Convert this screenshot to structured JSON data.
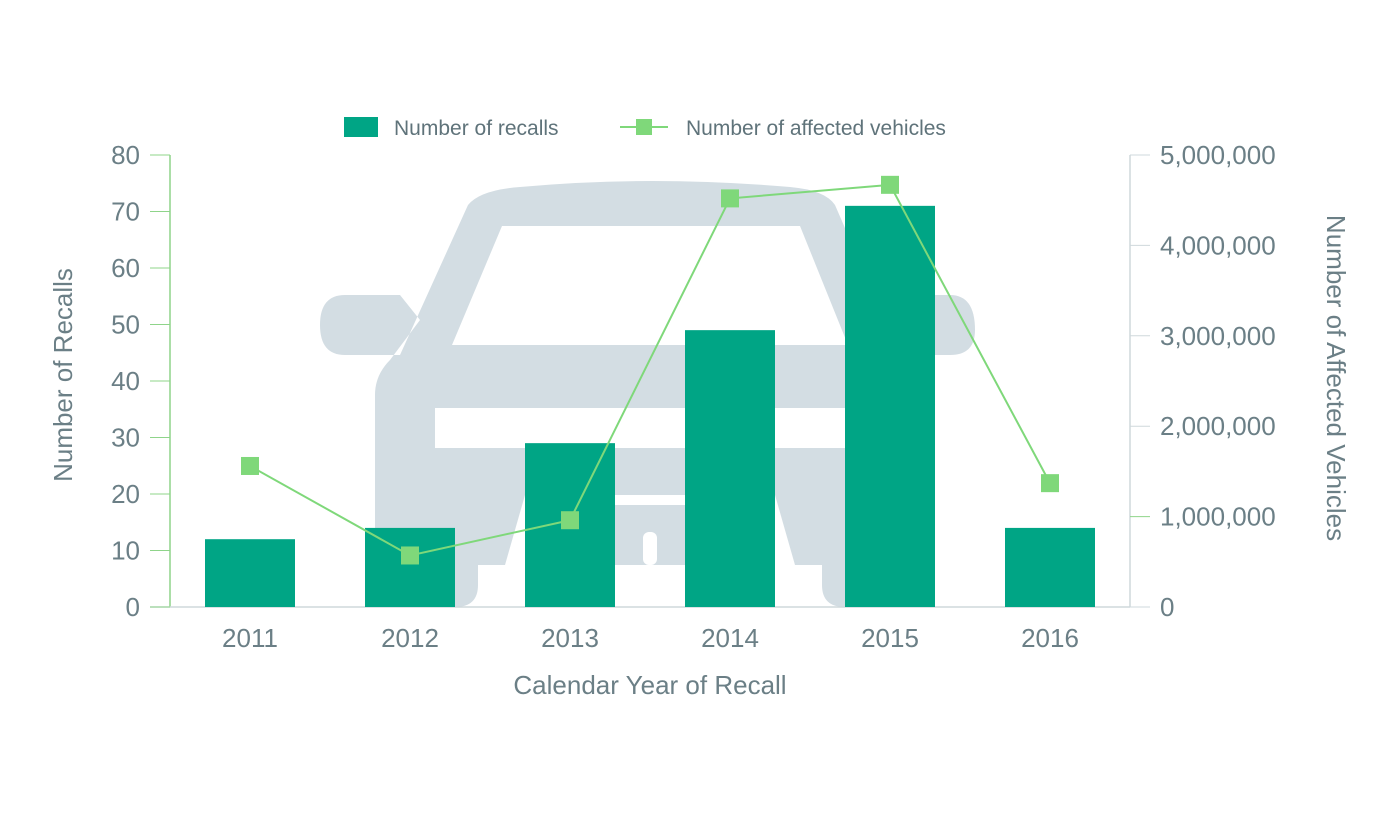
{
  "colors": {
    "bar": "#00a585",
    "line": "#7fd87a",
    "marker": "#7fd87a",
    "car": "#d3dde3",
    "text": "#6b7f86",
    "axis_left": "#8fd48a",
    "axis_right": "#cfd8dc"
  },
  "background_icon": "car-front-icon",
  "legend": {
    "bar_label": "Number of recalls",
    "line_label": "Number of affected vehicles",
    "placement": "top-center"
  },
  "chart_data": {
    "type": "bar",
    "categories": [
      "2011",
      "2012",
      "2013",
      "2014",
      "2015",
      "2016"
    ],
    "series": [
      {
        "name": "Number of recalls",
        "type": "bar",
        "axis": "left",
        "values": [
          12,
          14,
          29,
          49,
          71,
          14
        ]
      },
      {
        "name": "Number of affected vehicles",
        "type": "line",
        "axis": "right",
        "values": [
          1560000,
          570000,
          960000,
          4520000,
          4670000,
          1370000
        ]
      }
    ],
    "xlabel": "Calendar Year of Recall",
    "ylabel": "Number of Recalls",
    "y2label": "Number of Affected Vehicles",
    "ylim": [
      0,
      80
    ],
    "y2lim": [
      0,
      5000000
    ],
    "yticks": [
      "0",
      "10",
      "20",
      "30",
      "40",
      "50",
      "60",
      "70",
      "80"
    ],
    "y2ticks": [
      "0",
      "1,000,000",
      "2,000,000",
      "3,000,000",
      "4,000,000",
      "5,000,000"
    ],
    "grid": false
  }
}
